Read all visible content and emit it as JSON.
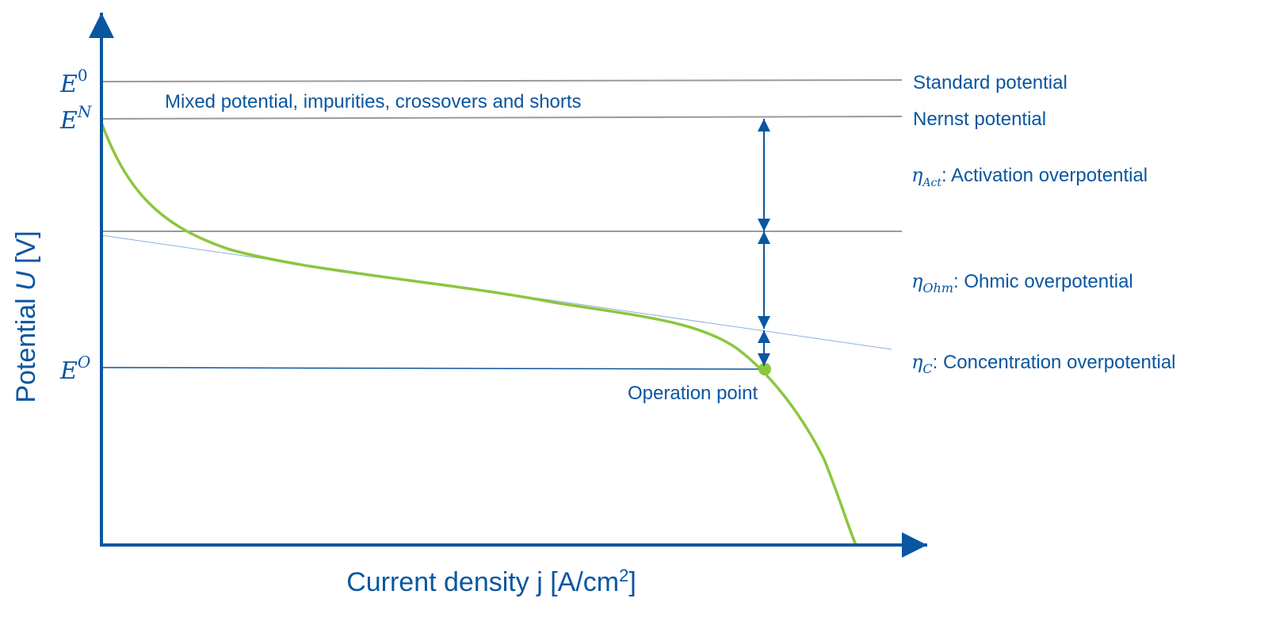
{
  "y_axis_label": {
    "prefix": "Potential ",
    "symbol": "U",
    "suffix": " [V]"
  },
  "x_axis_label": {
    "text": "Current density j [A/cm",
    "superscript": "2",
    "suffix": "]"
  },
  "levels": [
    {
      "symbol": "E",
      "superscript": "0",
      "label": "Standard potential"
    },
    {
      "symbol": "E",
      "superscript": "N",
      "label": "Nernst potential"
    },
    {
      "symbol": "E",
      "superscript": "O"
    }
  ],
  "overpotentials": [
    {
      "symbol": "η",
      "subscript": "Act",
      "label": ": Activation overpotential"
    },
    {
      "symbol": "η",
      "subscript": "Ohm",
      "label": ": Ohmic overpotential"
    },
    {
      "symbol": "η",
      "subscript": "C",
      "label": ": Concentration overpotential"
    }
  ],
  "annotations": {
    "mixed": "Mixed potential, impurities, crossovers and shorts",
    "operation_point": "Operation point"
  }
}
